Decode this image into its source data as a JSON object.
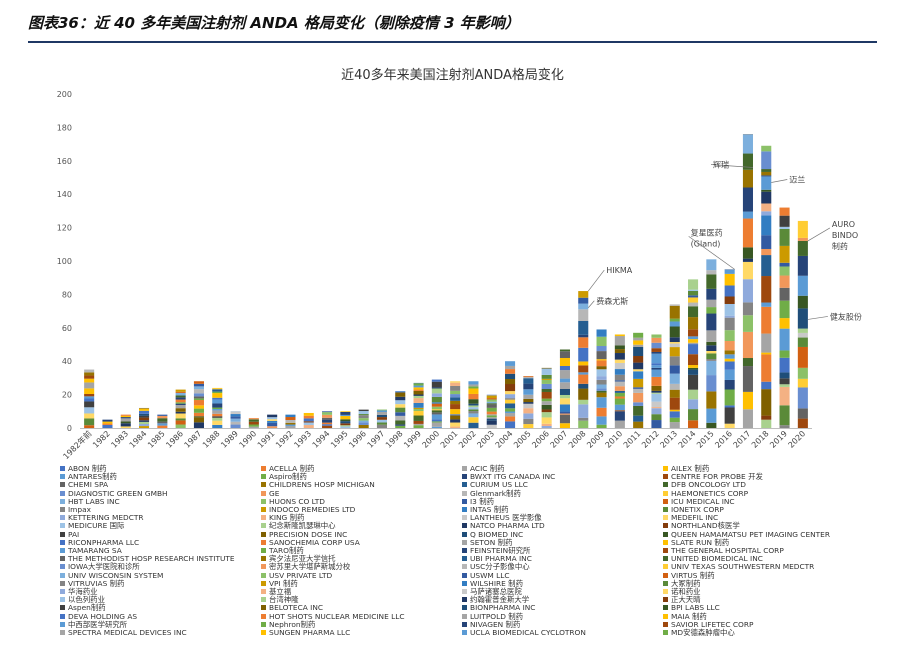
{
  "figure": {
    "title": "图表36：近 40 多年美国注射剂 ANDA 格局变化（剔除疫情 3 年影响）"
  },
  "chart_data": {
    "type": "bar",
    "stacked": true,
    "title": "近40多年来美国注射剂ANDA格局变化",
    "xlabel": "",
    "ylabel": "",
    "ylim": [
      0,
      200
    ],
    "yticks": [
      0,
      20,
      40,
      60,
      80,
      100,
      120,
      140,
      160,
      180,
      200
    ],
    "grid": false,
    "legend_position": "bottom",
    "categories": [
      "1982年前",
      "1982",
      "1983",
      "1984",
      "1985",
      "1986",
      "1987",
      "1988",
      "1989",
      "1990",
      "1991",
      "1992",
      "1993",
      "1994",
      "1995",
      "1996",
      "1997",
      "1998",
      "1999",
      "2000",
      "2001",
      "2002",
      "2003",
      "2004",
      "2005",
      "2006",
      "2007",
      "2008",
      "2009",
      "2010",
      "2011",
      "2012",
      "2013",
      "2014",
      "2015",
      "2016",
      "2017",
      "2018",
      "2019",
      "2020"
    ],
    "totals": [
      35,
      5,
      8,
      12,
      8,
      23,
      28,
      24,
      10,
      6,
      8,
      8,
      9,
      10,
      10,
      11,
      11,
      22,
      27,
      29,
      28,
      28,
      20,
      40,
      31,
      36,
      47,
      82,
      59,
      56,
      57,
      56,
      74,
      89,
      101,
      95,
      176,
      169,
      132,
      124
    ],
    "annotations": [
      {
        "text": "HIKMA",
        "category": "2008",
        "value": 82
      },
      {
        "text": "费森尤斯",
        "category": "2008",
        "value": 72
      },
      {
        "text": "复星医药 (Gland)",
        "category": "2016",
        "value": 95
      },
      {
        "text": "辉瑞",
        "category": "2017",
        "value": 156
      },
      {
        "text": "迈兰",
        "category": "2018",
        "value": 147
      },
      {
        "text": "AURO BINDO 制药",
        "category": "2020",
        "value": 112
      },
      {
        "text": "健友股份",
        "category": "2020",
        "value": 65
      }
    ],
    "series": [
      {
        "name": "ABON 制药",
        "color": "#4472c4"
      },
      {
        "name": "ACELLA 制药",
        "color": "#ed7d31"
      },
      {
        "name": "ACIC 制药",
        "color": "#a5a5a5"
      },
      {
        "name": "AILEX 制药",
        "color": "#ffc000"
      },
      {
        "name": "ANTARES制药",
        "color": "#5b9bd5"
      },
      {
        "name": "Aspiro制药",
        "color": "#70ad47"
      },
      {
        "name": "BWXT ITG CANADA INC",
        "color": "#264478"
      },
      {
        "name": "CENTRE FOR PROBE 开发",
        "color": "#9e480e"
      },
      {
        "name": "CHEMI SPA",
        "color": "#636363"
      },
      {
        "name": "CHILDRENS HOSP MICHIGAN",
        "color": "#997300"
      },
      {
        "name": "CURIUM US LLC",
        "color": "#255e91"
      },
      {
        "name": "DFB ONCOLOGY LTD",
        "color": "#43682b"
      },
      {
        "name": "DIAGNOSTIC GREEN GMBH",
        "color": "#698ed0"
      },
      {
        "name": "GE",
        "color": "#f1975a"
      },
      {
        "name": "Glenmark制药",
        "color": "#b7b7b7"
      },
      {
        "name": "HAEMONETICS CORP",
        "color": "#ffcd33"
      },
      {
        "name": "HBT LABS INC",
        "color": "#7cafdd"
      },
      {
        "name": "HUONS CO LTD",
        "color": "#8cc168"
      },
      {
        "name": "I3 制药",
        "color": "#335aa1"
      },
      {
        "name": "ICU MEDICAL INC",
        "color": "#d26012"
      },
      {
        "name": "Impax",
        "color": "#848484"
      },
      {
        "name": "INDOCO REMEDIES LTD",
        "color": "#cc9a00"
      },
      {
        "name": "INTAS 制药",
        "color": "#327dc2"
      },
      {
        "name": "IONETIX CORP",
        "color": "#5a8a39"
      },
      {
        "name": "KETTERING MEDCTR",
        "color": "#8faadc"
      },
      {
        "name": "KING 制药",
        "color": "#f4b183"
      },
      {
        "name": "LANTHEUS 医学影像",
        "color": "#c9c9c9"
      },
      {
        "name": "MEDEFIL INC",
        "color": "#ffd966"
      },
      {
        "name": "MEDICURE 国际",
        "color": "#9dc3e6"
      },
      {
        "name": "纪念斯隆凯瑟琳中心",
        "color": "#a9d18e"
      },
      {
        "name": "NATCO PHARMA LTD",
        "color": "#203864"
      },
      {
        "name": "NORTHLAND核医学",
        "color": "#843c0c"
      },
      {
        "name": "PAI",
        "color": "#404040"
      },
      {
        "name": "PRECISION DOSE INC",
        "color": "#7f6000"
      },
      {
        "name": "Q BIOMED INC",
        "color": "#1f4e79"
      },
      {
        "name": "QUEEN HAMAMATSU PET IMAGING CENTER",
        "color": "#385723"
      },
      {
        "name": "RICONPHARMA LLC",
        "color": "#4472c4"
      },
      {
        "name": "SANOCHEMIA CORP USA",
        "color": "#ed7d31"
      },
      {
        "name": "SETON 制药",
        "color": "#a5a5a5"
      },
      {
        "name": "SLATE RUN 制药",
        "color": "#ffc000"
      },
      {
        "name": "TAMARANG SA",
        "color": "#5b9bd5"
      },
      {
        "name": "TARO制药",
        "color": "#70ad47"
      },
      {
        "name": "FEINSTEIN研究所",
        "color": "#264478"
      },
      {
        "name": "THE GENERAL HOSPITAL CORP",
        "color": "#9e480e"
      },
      {
        "name": "THE METHODIST HOSP RESEARCH INSTITUTE",
        "color": "#636363"
      },
      {
        "name": "宾夕法尼亚大学信托",
        "color": "#997300"
      },
      {
        "name": "UBI PHARMA INC",
        "color": "#255e91"
      },
      {
        "name": "UNITED BIOMEDICAL INC",
        "color": "#43682b"
      },
      {
        "name": "IOWA大学医院和诊所",
        "color": "#698ed0"
      },
      {
        "name": "密苏里大学堪萨斯城分校",
        "color": "#f1975a"
      },
      {
        "name": "USC分子影像中心",
        "color": "#b7b7b7"
      },
      {
        "name": "UNIV TEXAS SOUTHWESTERN MEDCTR",
        "color": "#ffcd33"
      },
      {
        "name": "UNIV WISCONSIN SYSTEM",
        "color": "#7cafdd"
      },
      {
        "name": "USV PRIVATE LTD",
        "color": "#8cc168"
      },
      {
        "name": "USWM LLC",
        "color": "#335aa1"
      },
      {
        "name": "VIRTUS 制药",
        "color": "#d26012"
      },
      {
        "name": "VITRUVIAS 制药",
        "color": "#848484"
      },
      {
        "name": "VPI 制药",
        "color": "#cc9a00"
      },
      {
        "name": "WILSHIRE 制药",
        "color": "#327dc2"
      },
      {
        "name": "大冢制药",
        "color": "#5a8a39"
      },
      {
        "name": "华海药业",
        "color": "#8faadc"
      },
      {
        "name": "基立福",
        "color": "#f4b183"
      },
      {
        "name": "马萨诸塞总医院",
        "color": "#c9c9c9"
      },
      {
        "name": "诺和药业",
        "color": "#ffd966"
      },
      {
        "name": "以色列药业",
        "color": "#9dc3e6"
      },
      {
        "name": "台湾神隆",
        "color": "#a9d18e"
      },
      {
        "name": "约翰霍普金斯大学",
        "color": "#203864"
      },
      {
        "name": "正大天晴",
        "color": "#843c0c"
      },
      {
        "name": "Aspen制药",
        "color": "#404040"
      },
      {
        "name": "BELOTECA INC",
        "color": "#7f6000"
      },
      {
        "name": "BIONPHARMA INC",
        "color": "#1f4e79"
      },
      {
        "name": "BPI LABS LLC",
        "color": "#385723"
      },
      {
        "name": "DEVA HOLDING AS",
        "color": "#4472c4"
      },
      {
        "name": "HOT SHOTS NUCLEAR MEDICINE LLC",
        "color": "#ed7d31"
      },
      {
        "name": "LUITPOLD 制药",
        "color": "#a5a5a5"
      },
      {
        "name": "MAIA 制药",
        "color": "#ffc000"
      },
      {
        "name": "中西部医学研究所",
        "color": "#5b9bd5"
      },
      {
        "name": "Nephron制药",
        "color": "#70ad47"
      },
      {
        "name": "NIVAGEN 制药",
        "color": "#264478"
      },
      {
        "name": "SAVIOR LIFETEC CORP",
        "color": "#9e480e"
      },
      {
        "name": "SPECTRA MEDICAL DEVICES INC",
        "color": "#a5a5a5"
      },
      {
        "name": "SUNGEN PHARMA LLC",
        "color": "#ffc000"
      },
      {
        "name": "UCLA BIOMEDICAL CYCLOTRON",
        "color": "#5b9bd5"
      },
      {
        "name": "MD安德森肿瘤中心",
        "color": "#70ad47"
      }
    ]
  }
}
